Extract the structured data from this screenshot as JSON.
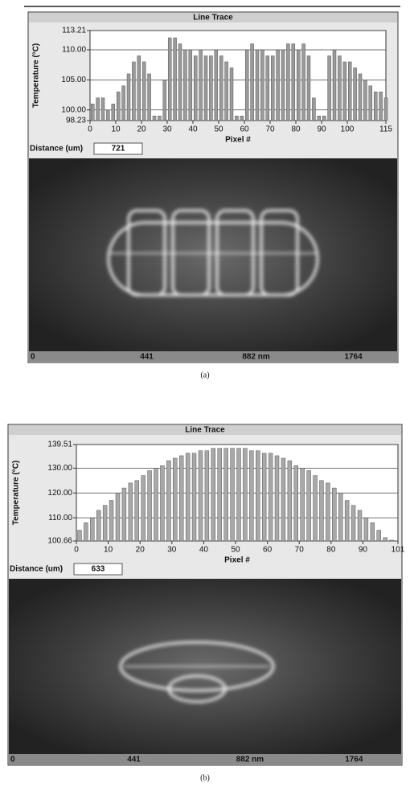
{
  "chart_data": [
    {
      "type": "bar",
      "title": "Line Trace",
      "y_label": "Temperature (°C)",
      "x_label": "Pixel #",
      "distance_label": "Distance (um)",
      "distance": 721,
      "scale_labels": [
        "0",
        "441",
        "882 nm",
        "1764"
      ],
      "caption": "(a)",
      "color": "#9a9a9a",
      "grid": true,
      "xlim": [
        0,
        115
      ],
      "xticks": [
        0,
        10,
        20,
        30,
        40,
        50,
        60,
        70,
        80,
        90,
        100,
        115
      ],
      "ylim": [
        98.23,
        113.21
      ],
      "yticks": [
        98.23,
        {
          "value": 100,
          "label": "100.00"
        },
        {
          "value": 105,
          "label": "105.00"
        },
        {
          "value": 110,
          "label": "110.00"
        },
        113.21
      ],
      "x": [
        1,
        3,
        5,
        7,
        9,
        11,
        13,
        15,
        17,
        19,
        21,
        23,
        25,
        27,
        29,
        31,
        33,
        35,
        37,
        39,
        41,
        43,
        45,
        47,
        49,
        51,
        53,
        55,
        57,
        59,
        61,
        63,
        65,
        67,
        69,
        71,
        73,
        75,
        77,
        79,
        81,
        83,
        85,
        87,
        89,
        91,
        93,
        95,
        97,
        99,
        101,
        103,
        105,
        107,
        109,
        111,
        113,
        115
      ],
      "values": [
        101,
        102,
        102,
        100,
        101,
        103,
        104,
        106,
        108,
        109,
        108,
        106,
        99,
        99,
        105,
        112,
        112,
        111,
        110,
        110,
        109,
        110,
        109,
        109,
        110,
        109,
        108,
        107,
        99,
        99,
        110,
        111,
        110,
        110,
        109,
        109,
        110,
        110,
        111,
        111,
        110,
        111,
        109,
        102,
        99,
        99,
        109,
        110,
        109,
        108,
        108,
        107,
        106,
        105,
        104,
        103,
        103,
        102
      ]
    },
    {
      "type": "bar",
      "title": "Line Trace",
      "y_label": "Temperature (°C)",
      "x_label": "Pixel #",
      "distance_label": "Distance (um)",
      "distance": 633,
      "scale_labels": [
        "0",
        "441",
        "882 nm",
        "1764"
      ],
      "caption": "(b)",
      "color": "#a8a8a8",
      "grid": true,
      "xlim": [
        0,
        101
      ],
      "xticks": [
        0,
        10,
        20,
        30,
        40,
        50,
        60,
        70,
        80,
        90,
        101
      ],
      "ylim": [
        100.66,
        139.51
      ],
      "yticks": [
        100.66,
        {
          "value": 110,
          "label": "110.00"
        },
        {
          "value": 120,
          "label": "120.00"
        },
        {
          "value": 130,
          "label": "130.00"
        },
        139.51
      ],
      "x": [
        1,
        3,
        5,
        7,
        9,
        11,
        13,
        15,
        17,
        19,
        21,
        23,
        25,
        27,
        29,
        31,
        33,
        35,
        37,
        39,
        41,
        43,
        45,
        47,
        49,
        51,
        53,
        55,
        57,
        59,
        61,
        63,
        65,
        67,
        69,
        71,
        73,
        75,
        77,
        79,
        81,
        83,
        85,
        87,
        89,
        91,
        93,
        95,
        97,
        99
      ],
      "values": [
        105,
        108,
        110,
        113,
        115,
        117,
        120,
        122,
        124,
        125,
        127,
        129,
        130,
        131,
        133,
        134,
        135,
        136,
        136,
        137,
        137,
        138,
        138,
        138,
        138,
        138,
        138,
        137,
        137,
        136,
        136,
        135,
        134,
        133,
        131,
        130,
        129,
        127,
        125,
        124,
        122,
        120,
        117,
        115,
        113,
        110,
        108,
        105,
        102,
        101
      ]
    }
  ]
}
